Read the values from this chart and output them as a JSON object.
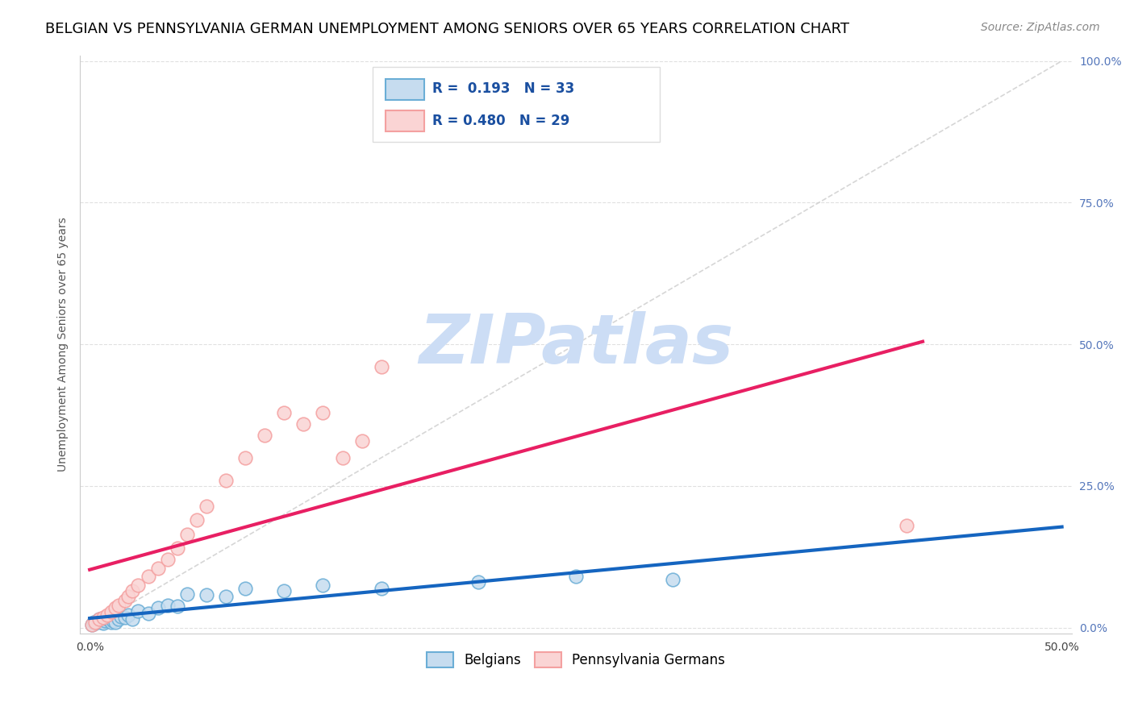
{
  "title": "BELGIAN VS PENNSYLVANIA GERMAN UNEMPLOYMENT AMONG SENIORS OVER 65 YEARS CORRELATION CHART",
  "source": "Source: ZipAtlas.com",
  "xlabel": "",
  "ylabel": "Unemployment Among Seniors over 65 years",
  "xlim": [
    -0.005,
    0.505
  ],
  "ylim": [
    -0.01,
    1.01
  ],
  "xtick_positions": [
    0.0,
    0.5
  ],
  "xticklabels": [
    "0.0%",
    "50.0%"
  ],
  "ytick_positions": [
    0.0,
    0.25,
    0.5,
    0.75,
    1.0
  ],
  "yticklabels": [
    "0.0%",
    "25.0%",
    "50.0%",
    "75.0%",
    "100.0%"
  ],
  "belgians_color": "#6baed6",
  "belgians_color_light": "#c6dcef",
  "pa_german_color": "#f4a0a0",
  "pa_german_color_light": "#fad4d4",
  "R_belgians": 0.193,
  "N_belgians": 33,
  "R_pa_german": 0.48,
  "N_pa_german": 29,
  "watermark": "ZIPatlas",
  "watermark_color": "#ccddf5",
  "belgians_x": [
    0.001,
    0.002,
    0.003,
    0.004,
    0.005,
    0.006,
    0.007,
    0.008,
    0.009,
    0.01,
    0.011,
    0.012,
    0.013,
    0.015,
    0.016,
    0.018,
    0.02,
    0.022,
    0.025,
    0.03,
    0.035,
    0.04,
    0.045,
    0.05,
    0.06,
    0.07,
    0.08,
    0.1,
    0.12,
    0.15,
    0.2,
    0.25,
    0.3
  ],
  "belgians_y": [
    0.005,
    0.01,
    0.008,
    0.012,
    0.015,
    0.01,
    0.008,
    0.012,
    0.015,
    0.018,
    0.01,
    0.012,
    0.01,
    0.015,
    0.02,
    0.018,
    0.022,
    0.015,
    0.03,
    0.025,
    0.035,
    0.04,
    0.038,
    0.06,
    0.058,
    0.055,
    0.07,
    0.065,
    0.075,
    0.07,
    0.08,
    0.09,
    0.085
  ],
  "pa_german_x": [
    0.001,
    0.003,
    0.005,
    0.007,
    0.009,
    0.011,
    0.013,
    0.015,
    0.018,
    0.02,
    0.022,
    0.025,
    0.03,
    0.035,
    0.04,
    0.045,
    0.05,
    0.055,
    0.06,
    0.07,
    0.08,
    0.09,
    0.1,
    0.11,
    0.12,
    0.13,
    0.14,
    0.15,
    0.42
  ],
  "pa_german_y": [
    0.005,
    0.01,
    0.015,
    0.018,
    0.022,
    0.028,
    0.035,
    0.04,
    0.048,
    0.055,
    0.065,
    0.075,
    0.09,
    0.105,
    0.12,
    0.14,
    0.165,
    0.19,
    0.215,
    0.26,
    0.3,
    0.34,
    0.38,
    0.36,
    0.38,
    0.3,
    0.33,
    0.46,
    0.18
  ],
  "ref_line_color": "#cccccc",
  "blue_line_color": "#1565c0",
  "pink_line_color": "#e81f63",
  "title_fontsize": 13,
  "axis_label_fontsize": 10,
  "tick_fontsize": 10,
  "legend_fontsize": 12,
  "source_fontsize": 10,
  "marker_size": 12
}
